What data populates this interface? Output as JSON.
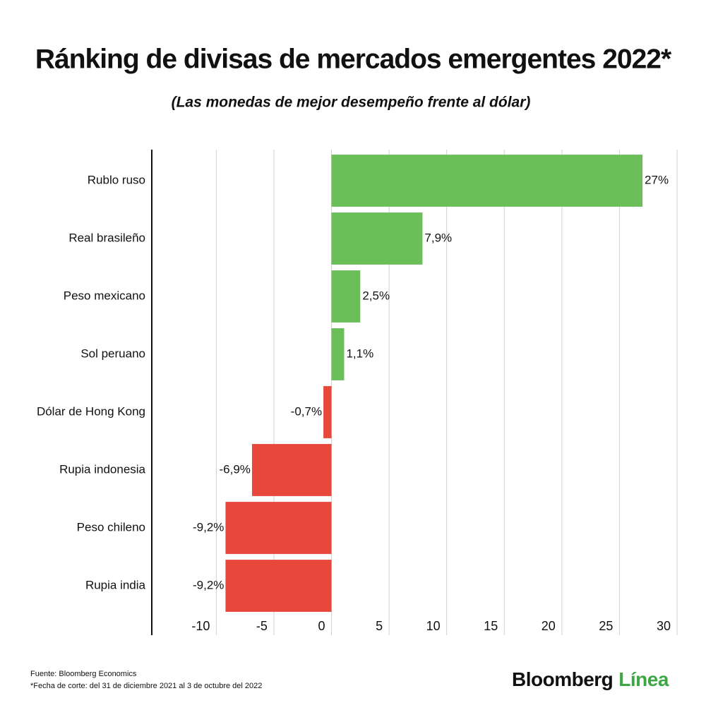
{
  "chart_data": {
    "type": "hbar",
    "title": "Ránking de divisas de mercados emergentes 2022*",
    "subtitle": "(Las monedas de mejor desempeño frente al dólar)",
    "categories": [
      "Rublo ruso",
      "Real brasileño",
      "Peso mexicano",
      "Sol peruano",
      "Dólar de Hong Kong",
      "Rupia indonesia",
      "Peso chileno",
      "Rupia india"
    ],
    "values": [
      27,
      7.9,
      2.5,
      1.1,
      -0.7,
      -6.9,
      -9.2,
      -9.2
    ],
    "value_labels": [
      "27%",
      "7,9%",
      "2,5%",
      "1,1%",
      "-0,7%",
      "-6,9%",
      "-9,2%",
      "-9,2%"
    ],
    "colors": [
      "#6abf59",
      "#6abf59",
      "#6abf59",
      "#6abf59",
      "#e8473b",
      "#e8473b",
      "#e8473b",
      "#e8473b"
    ],
    "xlim": [
      -15.6,
      30
    ],
    "xticks": [
      -10,
      -5,
      0,
      5,
      10,
      15,
      20,
      25,
      30
    ],
    "grid": true,
    "source": "Fuente: Bloomberg Economics",
    "note": "*Fecha de corte: del 31 de diciembre 2021 al 3 de octubre del 2022",
    "brand": [
      "Bloomberg",
      "Línea"
    ]
  }
}
